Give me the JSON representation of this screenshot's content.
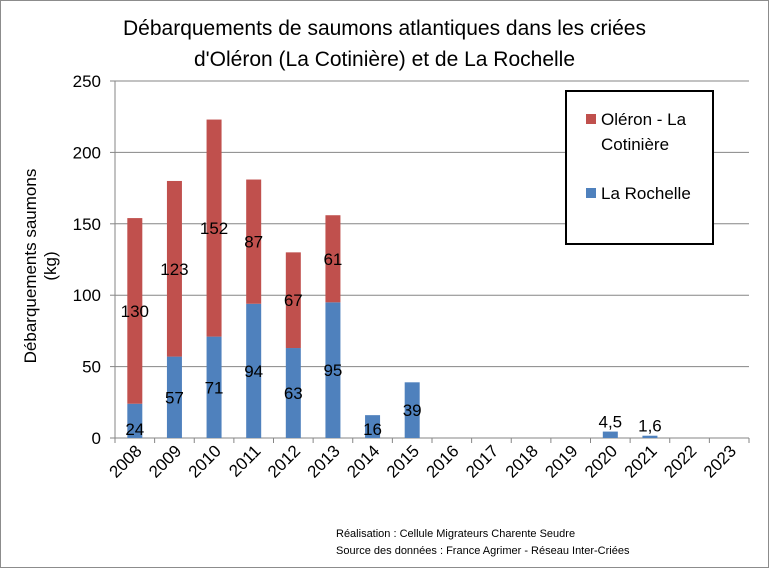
{
  "chart_data": {
    "type": "bar",
    "stacked": true,
    "title": "Débarquements de saumons atlantiques dans les criées d'Oléron (La Cotinière)  et de La Rochelle",
    "title_lines": [
      "Débarquements de saumons atlantiques dans les criées",
      "d'Oléron (La Cotinière)  et de La Rochelle"
    ],
    "xlabel": "",
    "ylabel": "Débarquements saumons (kg)",
    "ylim": [
      0,
      250
    ],
    "yticks": [
      0,
      50,
      100,
      150,
      200,
      250
    ],
    "grid": true,
    "legend_position": "top-right",
    "categories": [
      "2008",
      "2009",
      "2010",
      "2011",
      "2012",
      "2013",
      "2014",
      "2015",
      "2016",
      "2017",
      "2018",
      "2019",
      "2020",
      "2021",
      "2022",
      "2023"
    ],
    "series": [
      {
        "name": "La Rochelle",
        "color": "#4f81bd",
        "values": [
          24,
          57,
          71,
          94,
          63,
          95,
          16,
          39,
          0,
          0,
          0,
          0,
          4.5,
          1.6,
          0,
          0
        ],
        "labels": [
          "24",
          "57",
          "71",
          "94",
          "63",
          "95",
          "16",
          "39",
          "",
          "",
          "",
          "",
          "4,5",
          "1,6",
          "",
          ""
        ]
      },
      {
        "name": "Oléron - La Cotinière",
        "legend_lines": [
          "Oléron - La",
          "Cotinière"
        ],
        "color": "#c0504d",
        "values": [
          130,
          123,
          152,
          87,
          67,
          61,
          0,
          0,
          0,
          0,
          0,
          0,
          0,
          0,
          0,
          0
        ],
        "labels": [
          "130",
          "123",
          "152",
          "87",
          "67",
          "61",
          "",
          "",
          "",
          "",
          "",
          "",
          "",
          "",
          "",
          ""
        ]
      }
    ],
    "footer": [
      "Réalisation : Cellule Migrateurs Charente Seudre",
      "Source des données : France Agrimer - Réseau Inter-Criées"
    ]
  }
}
